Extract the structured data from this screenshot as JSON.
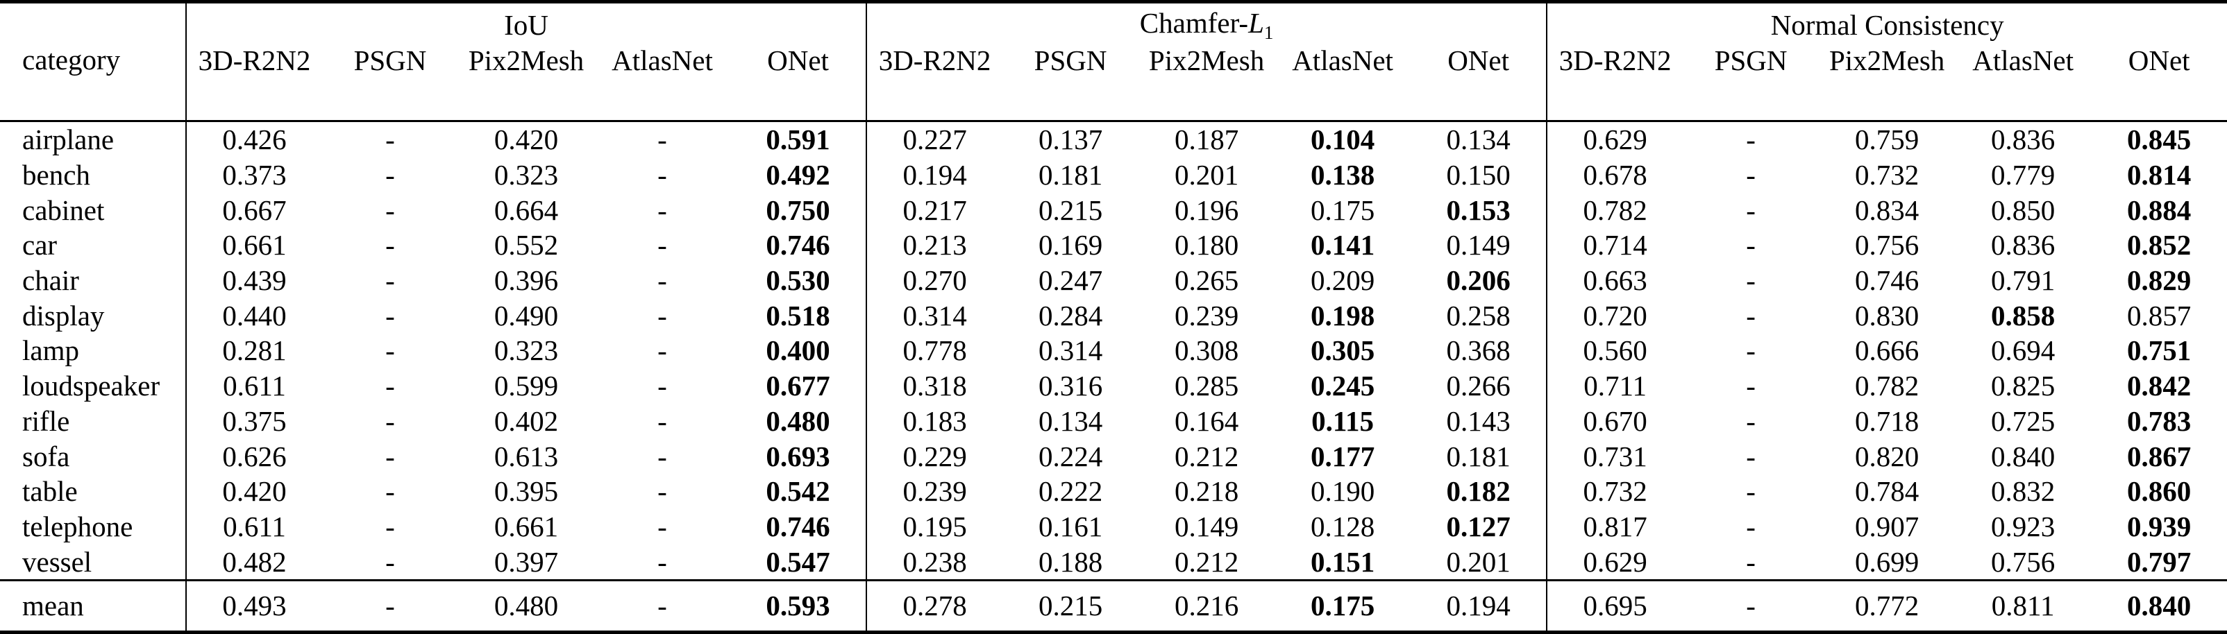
{
  "table": {
    "corner_label": "category",
    "groups": [
      {
        "label": "IoU",
        "columns": [
          "3D-R2N2",
          "PSGN",
          "Pix2Mesh",
          "AtlasNet",
          "ONet"
        ]
      },
      {
        "label_prefix": "Chamfer-",
        "label_symbol": "L",
        "label_subscript": "1",
        "columns": [
          "3D-R2N2",
          "PSGN",
          "Pix2Mesh",
          "AtlasNet",
          "ONet"
        ]
      },
      {
        "label": "Normal Consistency",
        "columns": [
          "3D-R2N2",
          "PSGN",
          "Pix2Mesh",
          "AtlasNet",
          "ONet"
        ]
      }
    ],
    "rows": [
      {
        "category": "airplane",
        "values": [
          "0.426",
          "-",
          "0.420",
          "-",
          "0.591",
          "0.227",
          "0.137",
          "0.187",
          "0.104",
          "0.134",
          "0.629",
          "-",
          "0.759",
          "0.836",
          "0.845"
        ],
        "bold": [
          4,
          8,
          14
        ]
      },
      {
        "category": "bench",
        "values": [
          "0.373",
          "-",
          "0.323",
          "-",
          "0.492",
          "0.194",
          "0.181",
          "0.201",
          "0.138",
          "0.150",
          "0.678",
          "-",
          "0.732",
          "0.779",
          "0.814"
        ],
        "bold": [
          4,
          8,
          14
        ]
      },
      {
        "category": "cabinet",
        "values": [
          "0.667",
          "-",
          "0.664",
          "-",
          "0.750",
          "0.217",
          "0.215",
          "0.196",
          "0.175",
          "0.153",
          "0.782",
          "-",
          "0.834",
          "0.850",
          "0.884"
        ],
        "bold": [
          4,
          9,
          14
        ]
      },
      {
        "category": "car",
        "values": [
          "0.661",
          "-",
          "0.552",
          "-",
          "0.746",
          "0.213",
          "0.169",
          "0.180",
          "0.141",
          "0.149",
          "0.714",
          "-",
          "0.756",
          "0.836",
          "0.852"
        ],
        "bold": [
          4,
          8,
          14
        ]
      },
      {
        "category": "chair",
        "values": [
          "0.439",
          "-",
          "0.396",
          "-",
          "0.530",
          "0.270",
          "0.247",
          "0.265",
          "0.209",
          "0.206",
          "0.663",
          "-",
          "0.746",
          "0.791",
          "0.829"
        ],
        "bold": [
          4,
          9,
          14
        ]
      },
      {
        "category": "display",
        "values": [
          "0.440",
          "-",
          "0.490",
          "-",
          "0.518",
          "0.314",
          "0.284",
          "0.239",
          "0.198",
          "0.258",
          "0.720",
          "-",
          "0.830",
          "0.858",
          "0.857"
        ],
        "bold": [
          4,
          8,
          13
        ]
      },
      {
        "category": "lamp",
        "values": [
          "0.281",
          "-",
          "0.323",
          "-",
          "0.400",
          "0.778",
          "0.314",
          "0.308",
          "0.305",
          "0.368",
          "0.560",
          "-",
          "0.666",
          "0.694",
          "0.751"
        ],
        "bold": [
          4,
          8,
          14
        ]
      },
      {
        "category": "loudspeaker",
        "values": [
          "0.611",
          "-",
          "0.599",
          "-",
          "0.677",
          "0.318",
          "0.316",
          "0.285",
          "0.245",
          "0.266",
          "0.711",
          "-",
          "0.782",
          "0.825",
          "0.842"
        ],
        "bold": [
          4,
          8,
          14
        ]
      },
      {
        "category": "rifle",
        "values": [
          "0.375",
          "-",
          "0.402",
          "-",
          "0.480",
          "0.183",
          "0.134",
          "0.164",
          "0.115",
          "0.143",
          "0.670",
          "-",
          "0.718",
          "0.725",
          "0.783"
        ],
        "bold": [
          4,
          8,
          14
        ]
      },
      {
        "category": "sofa",
        "values": [
          "0.626",
          "-",
          "0.613",
          "-",
          "0.693",
          "0.229",
          "0.224",
          "0.212",
          "0.177",
          "0.181",
          "0.731",
          "-",
          "0.820",
          "0.840",
          "0.867"
        ],
        "bold": [
          4,
          8,
          14
        ]
      },
      {
        "category": "table",
        "values": [
          "0.420",
          "-",
          "0.395",
          "-",
          "0.542",
          "0.239",
          "0.222",
          "0.218",
          "0.190",
          "0.182",
          "0.732",
          "-",
          "0.784",
          "0.832",
          "0.860"
        ],
        "bold": [
          4,
          9,
          14
        ]
      },
      {
        "category": "telephone",
        "values": [
          "0.611",
          "-",
          "0.661",
          "-",
          "0.746",
          "0.195",
          "0.161",
          "0.149",
          "0.128",
          "0.127",
          "0.817",
          "-",
          "0.907",
          "0.923",
          "0.939"
        ],
        "bold": [
          4,
          9,
          14
        ]
      },
      {
        "category": "vessel",
        "values": [
          "0.482",
          "-",
          "0.397",
          "-",
          "0.547",
          "0.238",
          "0.188",
          "0.212",
          "0.151",
          "0.201",
          "0.629",
          "-",
          "0.699",
          "0.756",
          "0.797"
        ],
        "bold": [
          4,
          8,
          14
        ]
      }
    ],
    "mean_row": {
      "category": "mean",
      "values": [
        "0.493",
        "-",
        "0.480",
        "-",
        "0.593",
        "0.278",
        "0.215",
        "0.216",
        "0.175",
        "0.194",
        "0.695",
        "-",
        "0.772",
        "0.811",
        "0.840"
      ],
      "bold": [
        4,
        8,
        14
      ]
    }
  }
}
